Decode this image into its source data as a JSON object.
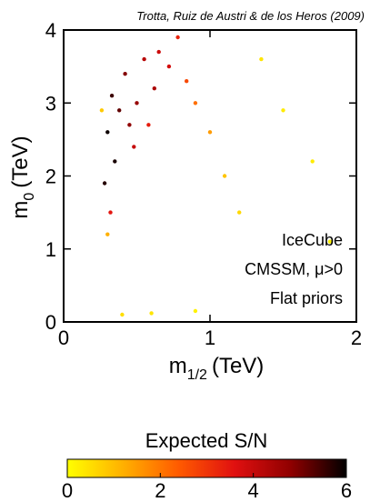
{
  "chart_data": {
    "type": "scatter",
    "title": "Trotta, Ruiz de Austri & de los Heros (2009)",
    "xlabel": {
      "main": "m",
      "sub": "1/2",
      "unit": "(TeV)"
    },
    "ylabel": {
      "main": "m",
      "sub": "0",
      "unit": "(TeV)"
    },
    "xlim": [
      0,
      2
    ],
    "ylim": [
      0,
      4
    ],
    "xticks": [
      "0",
      "1",
      "2"
    ],
    "yticks": [
      "0",
      "1",
      "2",
      "3",
      "4"
    ],
    "annotations": [
      "IceCube",
      "CMSSM, μ>0",
      "Flat priors"
    ],
    "colorbar": {
      "label": "Expected S/N",
      "range": [
        0,
        6
      ],
      "ticks": [
        "0",
        "2",
        "4",
        "6"
      ],
      "colormap": [
        "#ffff00",
        "#ffb000",
        "#ff5a00",
        "#e01010",
        "#900000",
        "#000000"
      ]
    },
    "point_color_field": "expected_sn",
    "points": [
      {
        "x": 0.35,
        "y": 2.2,
        "sn": 5.8
      },
      {
        "x": 0.3,
        "y": 2.6,
        "sn": 5.9
      },
      {
        "x": 0.33,
        "y": 3.1,
        "sn": 5.5
      },
      {
        "x": 0.28,
        "y": 1.9,
        "sn": 5.7
      },
      {
        "x": 0.38,
        "y": 2.9,
        "sn": 5.2
      },
      {
        "x": 0.42,
        "y": 3.4,
        "sn": 4.9
      },
      {
        "x": 0.55,
        "y": 3.6,
        "sn": 4.2
      },
      {
        "x": 0.65,
        "y": 3.7,
        "sn": 3.9
      },
      {
        "x": 0.72,
        "y": 3.5,
        "sn": 3.8
      },
      {
        "x": 0.62,
        "y": 3.2,
        "sn": 4.4
      },
      {
        "x": 0.5,
        "y": 3.0,
        "sn": 4.7
      },
      {
        "x": 0.45,
        "y": 2.7,
        "sn": 4.8
      },
      {
        "x": 0.48,
        "y": 2.4,
        "sn": 4.0
      },
      {
        "x": 0.58,
        "y": 2.7,
        "sn": 3.4
      },
      {
        "x": 0.78,
        "y": 3.9,
        "sn": 3.3
      },
      {
        "x": 0.84,
        "y": 3.3,
        "sn": 2.7
      },
      {
        "x": 0.9,
        "y": 3.0,
        "sn": 2.1
      },
      {
        "x": 1.0,
        "y": 2.6,
        "sn": 1.5
      },
      {
        "x": 1.1,
        "y": 2.0,
        "sn": 0.9
      },
      {
        "x": 1.2,
        "y": 1.5,
        "sn": 0.6
      },
      {
        "x": 1.35,
        "y": 3.6,
        "sn": 0.4
      },
      {
        "x": 1.5,
        "y": 2.9,
        "sn": 0.3
      },
      {
        "x": 1.7,
        "y": 2.2,
        "sn": 0.3
      },
      {
        "x": 1.82,
        "y": 1.1,
        "sn": 0.2
      },
      {
        "x": 0.9,
        "y": 0.15,
        "sn": 0.2
      },
      {
        "x": 0.6,
        "y": 0.12,
        "sn": 0.4
      },
      {
        "x": 0.4,
        "y": 0.1,
        "sn": 0.5
      },
      {
        "x": 0.3,
        "y": 1.2,
        "sn": 1.2
      },
      {
        "x": 0.32,
        "y": 1.5,
        "sn": 3.5
      },
      {
        "x": 0.26,
        "y": 2.9,
        "sn": 0.8
      }
    ]
  }
}
